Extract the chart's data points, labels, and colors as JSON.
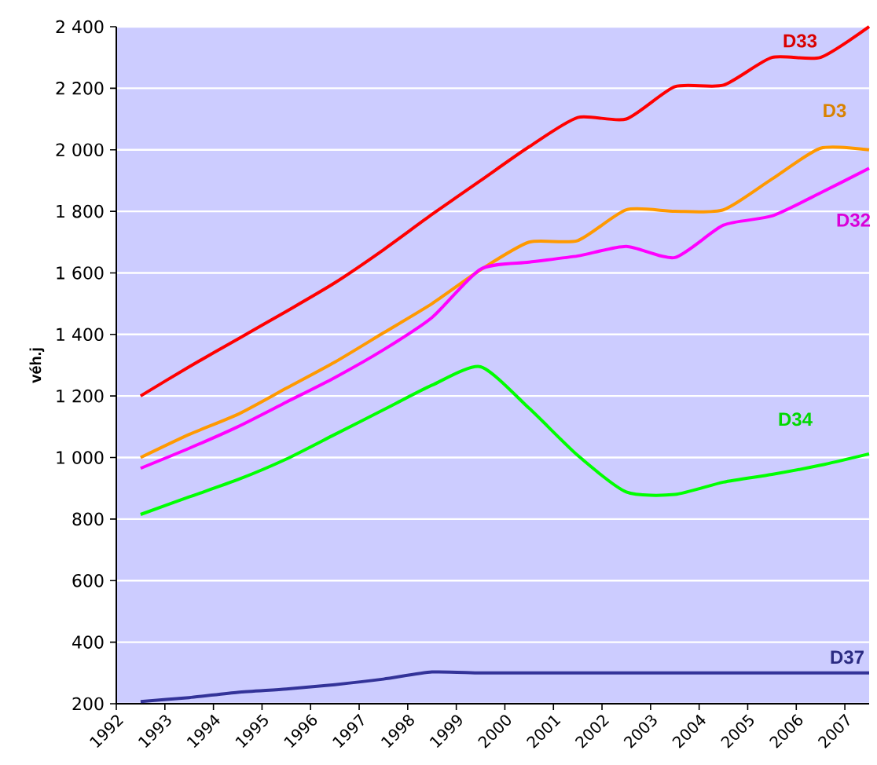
{
  "chart_data": {
    "type": "line",
    "ylabel": "véh.j",
    "x": [
      1992.5,
      1993.5,
      1994.5,
      1995.5,
      1996.5,
      1997.5,
      1998.5,
      1999.5,
      2000.5,
      2001.5,
      2002.5,
      2003.5,
      2004.5,
      2005.5,
      2006.5,
      2007.5
    ],
    "series": [
      {
        "name": "D33",
        "color": "#ff0000",
        "values": [
          1200,
          1295,
          1385,
          1475,
          1568,
          1675,
          1790,
          1900,
          2010,
          2105,
          2100,
          2205,
          2210,
          2300,
          2300,
          2400
        ]
      },
      {
        "name": "D3",
        "color": "#ff9900",
        "values": [
          1000,
          1075,
          1140,
          1225,
          1310,
          1405,
          1500,
          1610,
          1700,
          1705,
          1805,
          1800,
          1805,
          1905,
          2005,
          2000
        ]
      },
      {
        "name": "D32",
        "color": "#ff00ff",
        "values": [
          965,
          1030,
          1100,
          1180,
          1260,
          1350,
          1455,
          1612,
          1635,
          1655,
          1686,
          1650,
          1755,
          1785,
          1860,
          1940
        ]
      },
      {
        "name": "D34",
        "color": "#00ff00",
        "values": [
          815,
          872,
          928,
          995,
          1075,
          1155,
          1235,
          1295,
          1160,
          1007,
          888,
          880,
          920,
          945,
          975,
          1012
        ]
      },
      {
        "name": "D37",
        "color": "#333399",
        "values": [
          207,
          220,
          237,
          248,
          262,
          280,
          303,
          300,
          300,
          300,
          300,
          300,
          300,
          300,
          300,
          300
        ]
      }
    ],
    "xlim": [
      1992,
      2007.5
    ],
    "ylim": [
      200,
      2400
    ],
    "xticks": [
      1992,
      1993,
      1994,
      1995,
      1996,
      1997,
      1998,
      1999,
      2000,
      2001,
      2002,
      2003,
      2004,
      2005,
      2006,
      2007
    ],
    "yticks": [
      {
        "value": 200,
        "label": "200"
      },
      {
        "value": 400,
        "label": "400"
      },
      {
        "value": 600,
        "label": "600"
      },
      {
        "value": 800,
        "label": "800"
      },
      {
        "value": 1000,
        "label": "1 000"
      },
      {
        "value": 1200,
        "label": "1 200"
      },
      {
        "value": 1400,
        "label": "1 400"
      },
      {
        "value": 1600,
        "label": "1 600"
      },
      {
        "value": 1800,
        "label": "1 800"
      },
      {
        "value": 2000,
        "label": "2 000"
      },
      {
        "value": 2200,
        "label": "2 200"
      },
      {
        "value": 2400,
        "label": "2 400"
      }
    ],
    "grid": "y",
    "legend": false,
    "marker": "none",
    "line_style": "solid"
  }
}
